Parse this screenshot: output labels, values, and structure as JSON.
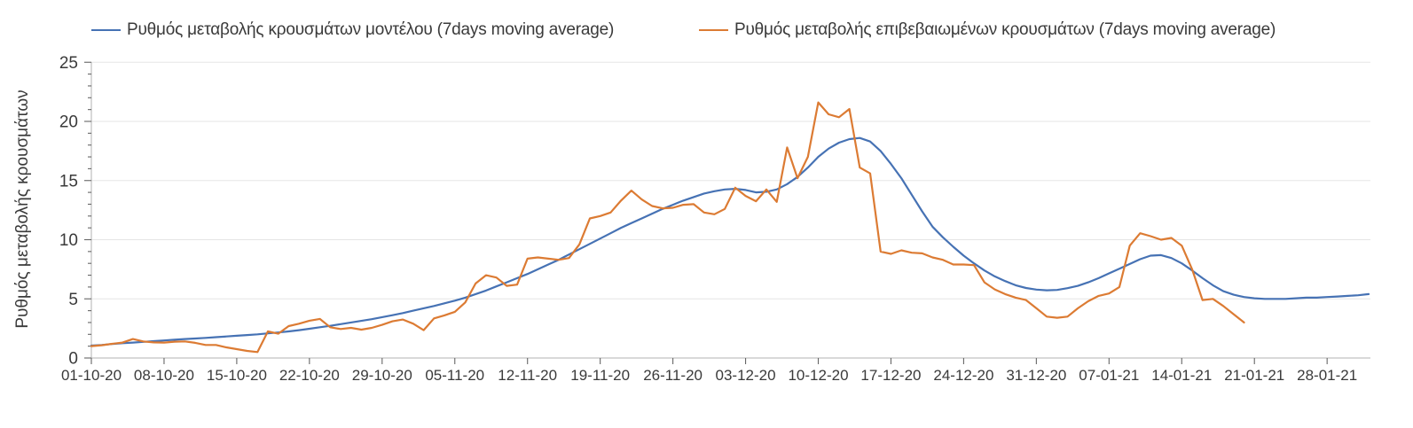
{
  "legend": {
    "items": [
      {
        "label": "Ρυθμός μεταβολής κρουσμάτων μοντέλου (7days moving average)"
      },
      {
        "label": "Ρυθμός μεταβολής επιβεβαιωμένων κρουσμάτων (7days moving average)"
      }
    ]
  },
  "chart_data": {
    "type": "line",
    "title": "",
    "xlabel": "",
    "ylabel": "Ρυθμός μεταβολής κρουσμάτων",
    "ylim": [
      0,
      25
    ],
    "y_ticks": [
      0,
      5,
      10,
      15,
      20,
      25
    ],
    "y_minor_tick_step": 1,
    "grid": "horizontal",
    "legend_position": "top",
    "x_tick_labels": [
      "01-10-20",
      "08-10-20",
      "15-10-20",
      "22-10-20",
      "29-10-20",
      "05-11-20",
      "12-11-20",
      "19-11-20",
      "26-11-20",
      "03-12-20",
      "10-12-20",
      "17-12-20",
      "24-12-20",
      "31-12-20",
      "07-01-21",
      "14-01-21",
      "21-01-21",
      "28-01-21"
    ],
    "x_tick_days": [
      0,
      7,
      14,
      21,
      28,
      35,
      42,
      49,
      56,
      63,
      70,
      77,
      84,
      91,
      98,
      105,
      112,
      119
    ],
    "x_total_days": 123,
    "x_unit": "daily points starting 01-10-20",
    "series": [
      {
        "name": "Ρυθμός μεταβολής κρουσμάτων μοντέλου (7days moving average)",
        "color": "#4672B4",
        "x_start_day": 0,
        "values": [
          1.05,
          1.1,
          1.18,
          1.25,
          1.3,
          1.36,
          1.42,
          1.48,
          1.54,
          1.6,
          1.65,
          1.7,
          1.76,
          1.82,
          1.88,
          1.94,
          2.0,
          2.08,
          2.16,
          2.25,
          2.35,
          2.47,
          2.6,
          2.72,
          2.86,
          3.0,
          3.14,
          3.28,
          3.45,
          3.62,
          3.8,
          4.0,
          4.2,
          4.4,
          4.62,
          4.85,
          5.1,
          5.4,
          5.7,
          6.05,
          6.4,
          6.75,
          7.1,
          7.5,
          7.9,
          8.3,
          8.75,
          9.2,
          9.65,
          10.1,
          10.55,
          11.0,
          11.4,
          11.8,
          12.2,
          12.6,
          12.95,
          13.3,
          13.6,
          13.9,
          14.1,
          14.25,
          14.3,
          14.2,
          14.0,
          14.05,
          14.25,
          14.7,
          15.3,
          16.1,
          17.0,
          17.7,
          18.2,
          18.5,
          18.6,
          18.3,
          17.5,
          16.4,
          15.2,
          13.8,
          12.4,
          11.1,
          10.2,
          9.4,
          8.65,
          8.0,
          7.4,
          6.9,
          6.5,
          6.15,
          5.92,
          5.78,
          5.72,
          5.75,
          5.9,
          6.1,
          6.4,
          6.75,
          7.15,
          7.55,
          7.95,
          8.35,
          8.65,
          8.7,
          8.45,
          8.0,
          7.4,
          6.75,
          6.15,
          5.65,
          5.35,
          5.15,
          5.05,
          5.0,
          5.0,
          5.0,
          5.05,
          5.1,
          5.1,
          5.15,
          5.2,
          5.25,
          5.3,
          5.4
        ]
      },
      {
        "name": "Ρυθμός μεταβολής επιβεβαιωμένων κρουσμάτων (7days moving average)",
        "color": "#DC7B33",
        "x_start_day": 0,
        "values": [
          1.0,
          1.08,
          1.2,
          1.3,
          1.6,
          1.4,
          1.32,
          1.3,
          1.38,
          1.4,
          1.28,
          1.1,
          1.1,
          0.9,
          0.75,
          0.6,
          0.5,
          2.25,
          2.05,
          2.7,
          2.9,
          3.15,
          3.3,
          2.6,
          2.45,
          2.55,
          2.4,
          2.55,
          2.8,
          3.1,
          3.25,
          2.9,
          2.35,
          3.35,
          3.6,
          3.9,
          4.7,
          6.3,
          7.0,
          6.8,
          6.1,
          6.2,
          8.4,
          8.5,
          8.4,
          8.3,
          8.45,
          9.6,
          11.8,
          12.0,
          12.3,
          13.3,
          14.15,
          13.4,
          12.85,
          12.65,
          12.7,
          12.95,
          13.0,
          12.3,
          12.15,
          12.6,
          14.4,
          13.7,
          13.25,
          14.25,
          13.2,
          17.8,
          15.2,
          17.0,
          21.6,
          20.6,
          20.35,
          21.05,
          16.1,
          15.6,
          9.0,
          8.8,
          9.1,
          8.9,
          8.85,
          8.5,
          8.3,
          7.9,
          7.9,
          7.85,
          6.4,
          5.8,
          5.4,
          5.1,
          4.9,
          4.2,
          3.5,
          3.4,
          3.5,
          4.2,
          4.8,
          5.25,
          5.45,
          6.0,
          9.5,
          10.55,
          10.3,
          10.0,
          10.15,
          9.5,
          7.5,
          4.9,
          5.0,
          4.4,
          3.7,
          3.0
        ]
      }
    ]
  },
  "colors": {
    "background": "#ffffff",
    "gridline": "#e5e5e5",
    "axis_line": "#c2c2c2",
    "tick": "#666666",
    "text": "#3a3a3a",
    "model_line": "#4672B4",
    "confirmed_line": "#DC7B33"
  }
}
